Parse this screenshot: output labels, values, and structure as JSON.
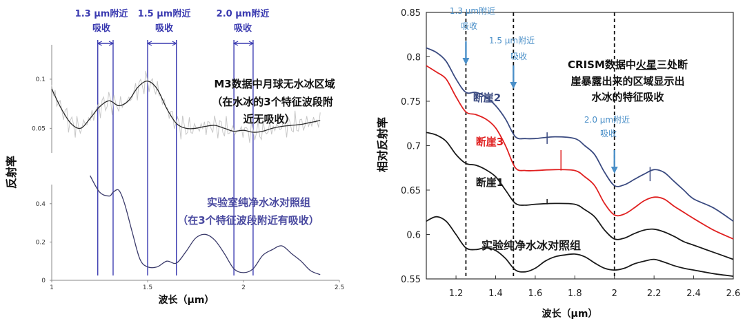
{
  "chart_data": [
    {
      "type": "line",
      "ylabel": "反射率",
      "xlabel": "波长（μm）",
      "xlim": [
        1.0,
        2.5
      ],
      "xticks": [
        "1",
        "1.5",
        "2",
        "2.5"
      ],
      "upper": {
        "ylim": [
          0.025,
          0.135
        ],
        "yticks": [
          "0.1",
          "0.05"
        ],
        "series": [
          {
            "x": [
              1.0,
              1.05,
              1.1,
              1.15,
              1.2,
              1.25,
              1.3,
              1.35,
              1.4,
              1.45,
              1.5,
              1.55,
              1.6,
              1.65,
              1.7,
              1.75,
              1.8,
              1.85,
              1.9,
              1.95,
              2.0,
              2.05,
              2.1,
              2.15,
              2.2,
              2.25,
              2.3,
              2.35,
              2.4
            ],
            "values": [
              0.09,
              0.07,
              0.055,
              0.05,
              0.06,
              0.072,
              0.078,
              0.073,
              0.078,
              0.092,
              0.098,
              0.09,
              0.07,
              0.055,
              0.05,
              0.05,
              0.052,
              0.053,
              0.05,
              0.047,
              0.048,
              0.046,
              0.047,
              0.05,
              0.052,
              0.053,
              0.054,
              0.056,
              0.058
            ]
          }
        ],
        "annotation": {
          "title": "M3数据中月球无水冰区域",
          "note_line1": "（在水冰的3个特征波段附",
          "note_line2": "近无吸收）"
        }
      },
      "lower": {
        "ylim": [
          0.0,
          0.5
        ],
        "yticks": [
          "0.4",
          "0.2",
          "0"
        ],
        "series": [
          {
            "x": [
              1.2,
              1.25,
              1.3,
              1.32,
              1.35,
              1.38,
              1.42,
              1.46,
              1.5,
              1.55,
              1.6,
              1.65,
              1.7,
              1.75,
              1.8,
              1.85,
              1.9,
              1.95,
              2.0,
              2.05,
              2.1,
              2.15,
              2.2,
              2.25,
              2.3,
              2.35,
              2.4
            ],
            "values": [
              0.62,
              0.46,
              0.44,
              0.46,
              0.47,
              0.4,
              0.25,
              0.11,
              0.07,
              0.07,
              0.1,
              0.09,
              0.15,
              0.22,
              0.24,
              0.21,
              0.14,
              0.06,
              0.04,
              0.06,
              0.13,
              0.16,
              0.18,
              0.14,
              0.1,
              0.05,
              0.03
            ]
          }
        ],
        "annotation": {
          "title": "实验室纯净水冰对照组",
          "note": "（在3个特征波段附近有吸收）"
        }
      },
      "bands": [
        {
          "label_line1": "1.3 μm附近",
          "label_line2": "吸收",
          "range": [
            1.24,
            1.32
          ]
        },
        {
          "label_line1": "1.5 μm附近",
          "label_line2": "吸收",
          "range": [
            1.5,
            1.65
          ]
        },
        {
          "label_line1": "2.0 μm附近",
          "label_line2": "吸收",
          "range": [
            1.95,
            2.05
          ]
        }
      ]
    },
    {
      "type": "line",
      "ylabel": "相对反射率",
      "xlabel": "波长（μm）",
      "xlim": [
        1.05,
        2.6
      ],
      "ylim": [
        0.55,
        0.85
      ],
      "xticks": [
        "1.2",
        "1.4",
        "1.6",
        "1.8",
        "2",
        "2.2",
        "2.4",
        "2.6"
      ],
      "yticks": [
        "0.55",
        "0.6",
        "0.65",
        "0.7",
        "0.75",
        "0.8",
        "0.85"
      ],
      "series": [
        {
          "name": "断崖2",
          "color": "#3a4a80",
          "x": [
            1.05,
            1.1,
            1.15,
            1.2,
            1.25,
            1.3,
            1.35,
            1.4,
            1.45,
            1.5,
            1.55,
            1.6,
            1.7,
            1.8,
            1.85,
            1.9,
            1.95,
            2.0,
            2.05,
            2.1,
            2.15,
            2.2,
            2.25,
            2.3,
            2.35,
            2.4,
            2.5,
            2.6
          ],
          "values": [
            0.81,
            0.805,
            0.795,
            0.775,
            0.76,
            0.76,
            0.755,
            0.745,
            0.73,
            0.71,
            0.708,
            0.708,
            0.71,
            0.708,
            0.7,
            0.69,
            0.67,
            0.655,
            0.656,
            0.662,
            0.668,
            0.673,
            0.67,
            0.66,
            0.65,
            0.64,
            0.63,
            0.615
          ]
        },
        {
          "name": "断崖3",
          "color": "#e02020",
          "x": [
            1.05,
            1.1,
            1.15,
            1.2,
            1.25,
            1.3,
            1.35,
            1.4,
            1.45,
            1.5,
            1.55,
            1.6,
            1.7,
            1.8,
            1.85,
            1.9,
            1.95,
            2.0,
            2.05,
            2.1,
            2.15,
            2.2,
            2.25,
            2.3,
            2.35,
            2.4,
            2.5,
            2.6
          ],
          "values": [
            0.79,
            0.783,
            0.775,
            0.755,
            0.738,
            0.735,
            0.73,
            0.72,
            0.7,
            0.675,
            0.672,
            0.672,
            0.673,
            0.672,
            0.665,
            0.655,
            0.635,
            0.622,
            0.623,
            0.63,
            0.638,
            0.642,
            0.64,
            0.632,
            0.625,
            0.618,
            0.605,
            0.595
          ]
        },
        {
          "name": "断崖1",
          "color": "#1a1a1a",
          "x": [
            1.05,
            1.1,
            1.15,
            1.2,
            1.25,
            1.3,
            1.35,
            1.4,
            1.45,
            1.5,
            1.55,
            1.6,
            1.7,
            1.8,
            1.85,
            1.9,
            1.95,
            2.0,
            2.05,
            2.1,
            2.15,
            2.2,
            2.25,
            2.3,
            2.35,
            2.4,
            2.5,
            2.6
          ],
          "values": [
            0.715,
            0.712,
            0.705,
            0.69,
            0.68,
            0.678,
            0.673,
            0.665,
            0.65,
            0.635,
            0.633,
            0.634,
            0.635,
            0.634,
            0.628,
            0.62,
            0.605,
            0.595,
            0.596,
            0.601,
            0.605,
            0.606,
            0.603,
            0.598,
            0.592,
            0.588,
            0.58,
            0.572
          ]
        },
        {
          "name": "实验纯净水冰对照组",
          "color": "#1a1a1a",
          "x": [
            1.05,
            1.1,
            1.15,
            1.2,
            1.25,
            1.3,
            1.35,
            1.4,
            1.45,
            1.5,
            1.55,
            1.6,
            1.65,
            1.7,
            1.75,
            1.8,
            1.85,
            1.9,
            1.95,
            2.0,
            2.05,
            2.1,
            2.15,
            2.2,
            2.25,
            2.3,
            2.35,
            2.4,
            2.5,
            2.6
          ],
          "values": [
            0.615,
            0.62,
            0.615,
            0.6,
            0.585,
            0.583,
            0.585,
            0.582,
            0.573,
            0.56,
            0.558,
            0.562,
            0.57,
            0.575,
            0.577,
            0.578,
            0.575,
            0.568,
            0.562,
            0.56,
            0.562,
            0.567,
            0.57,
            0.572,
            0.569,
            0.565,
            0.562,
            0.56,
            0.556,
            0.553
          ]
        }
      ],
      "markers": [
        {
          "label_line1": "1.3 μm附近",
          "label_line2": "吸收",
          "x": 1.25
        },
        {
          "label_line1": "1.5 μm附近",
          "label_line2": "吸收",
          "x": 1.49
        },
        {
          "label_line1": "2.0 μm附近",
          "label_line2": "吸收",
          "x": 2.0
        }
      ],
      "annotation": {
        "line1_pre": "CRISM数据中",
        "line1_em": "火星",
        "line1_post": "三处断",
        "line2": "崖暴露出来的区域显示出",
        "line3": "水冰的特征吸收"
      },
      "colors": {
        "marker_label": "#4a8fc8",
        "annotation": "#111111"
      }
    }
  ]
}
